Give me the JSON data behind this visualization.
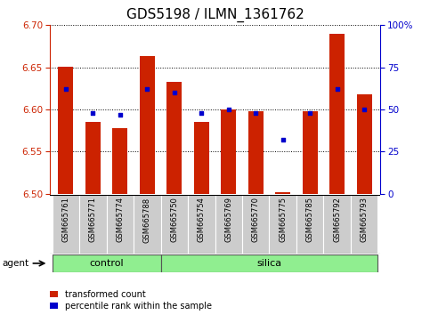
{
  "title": "GDS5198 / ILMN_1361762",
  "samples": [
    "GSM665761",
    "GSM665771",
    "GSM665774",
    "GSM665788",
    "GSM665750",
    "GSM665754",
    "GSM665769",
    "GSM665770",
    "GSM665775",
    "GSM665785",
    "GSM665792",
    "GSM665793"
  ],
  "transformed_count": [
    6.651,
    6.585,
    6.578,
    6.663,
    6.633,
    6.585,
    6.6,
    6.598,
    6.502,
    6.598,
    6.69,
    6.618
  ],
  "percentile_rank": [
    62,
    48,
    47,
    62,
    60,
    48,
    50,
    48,
    32,
    48,
    62,
    50
  ],
  "ylim_left": [
    6.5,
    6.7
  ],
  "ylim_right": [
    0,
    100
  ],
  "yticks_left": [
    6.5,
    6.55,
    6.6,
    6.65,
    6.7
  ],
  "yticks_right": [
    0,
    25,
    50,
    75,
    100
  ],
  "control_indices": [
    0,
    1,
    2,
    3
  ],
  "silica_indices": [
    4,
    5,
    6,
    7,
    8,
    9,
    10,
    11
  ],
  "agent_label": "agent",
  "bar_color": "#CC2200",
  "dot_color": "#0000CC",
  "bar_width": 0.55,
  "legend_transformed": "transformed count",
  "legend_percentile": "percentile rank within the sample",
  "bg_color": "#FFFFFF",
  "plot_bg_color": "#FFFFFF",
  "sample_label_bg": "#CCCCCC",
  "group_color": "#90EE90",
  "title_fontsize": 11,
  "tick_fontsize": 7.5,
  "sample_fontsize": 6,
  "group_fontsize": 8,
  "legend_fontsize": 7
}
